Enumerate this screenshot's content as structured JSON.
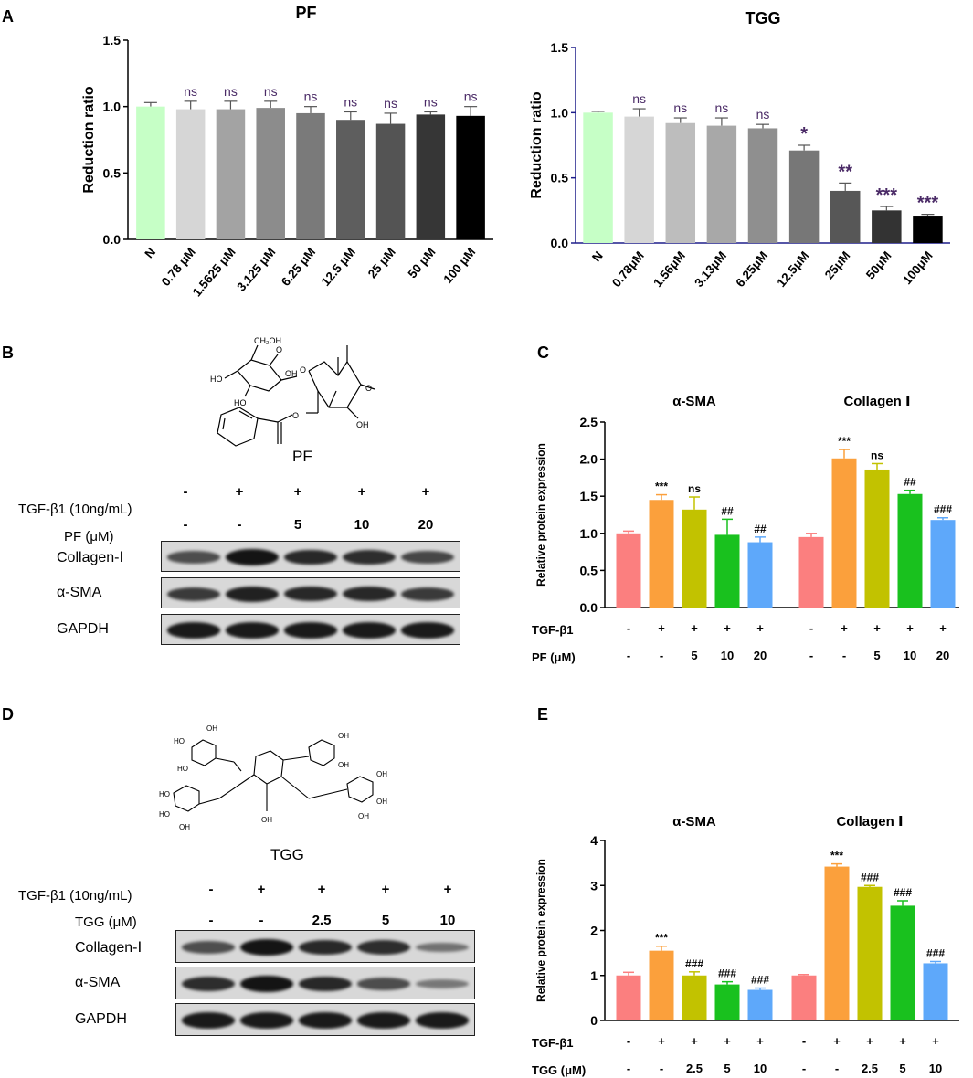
{
  "panel_labels": {
    "a": "A",
    "b": "B",
    "c": "C",
    "d": "D",
    "e": "E"
  },
  "chart_data": [
    {
      "id": "pf_viability",
      "type": "bar",
      "title": "PF",
      "ylabel": "Reduction ratio",
      "ylim": [
        0,
        1.5
      ],
      "yticks": [
        "0.0",
        "0.5",
        "1.0",
        "1.5"
      ],
      "categories": [
        "N",
        "0.78 μM",
        "1.5625 μM",
        "3.125 μM",
        "6.25 μM",
        "12.5 μM",
        "25 μM",
        "50 μM",
        "100 μM"
      ],
      "values": [
        1.0,
        0.98,
        0.98,
        0.99,
        0.95,
        0.9,
        0.87,
        0.94,
        0.93
      ],
      "errors": [
        0.03,
        0.06,
        0.06,
        0.05,
        0.05,
        0.06,
        0.08,
        0.02,
        0.07
      ],
      "annotations": [
        "",
        "ns",
        "ns",
        "ns",
        "ns",
        "ns",
        "ns",
        "ns",
        "ns"
      ],
      "colors": [
        "#c6ffc6",
        "#d6d6d6",
        "#a3a3a3",
        "#8c8c8c",
        "#7a7a7a",
        "#5e5e5e",
        "#545454",
        "#363636",
        "#000000"
      ]
    },
    {
      "id": "tgg_viability",
      "type": "bar",
      "title": "TGG",
      "ylabel": "Reduction ratio",
      "ylim": [
        0,
        1.5
      ],
      "yticks": [
        "0.0",
        "0.5",
        "1.0",
        "1.5"
      ],
      "categories": [
        "N",
        "0.78μM",
        "1.56μM",
        "3.13μM",
        "6.25μM",
        "12.5μM",
        "25μM",
        "50μM",
        "100μM"
      ],
      "values": [
        1.0,
        0.97,
        0.92,
        0.9,
        0.88,
        0.71,
        0.4,
        0.25,
        0.21
      ],
      "errors": [
        0.01,
        0.06,
        0.04,
        0.06,
        0.03,
        0.04,
        0.06,
        0.03,
        0.01
      ],
      "annotations": [
        "",
        "ns",
        "ns",
        "ns",
        "ns",
        "*",
        "**",
        "***",
        "***"
      ],
      "colors": [
        "#c6ffc6",
        "#d6d6d6",
        "#bdbdbd",
        "#a8a8a8",
        "#8f8f8f",
        "#777777",
        "#575757",
        "#333333",
        "#000000"
      ]
    },
    {
      "id": "pf_protein",
      "type": "bar",
      "ylabel": "Relative protein expression",
      "ylim": [
        0,
        2.5
      ],
      "yticks": [
        "0.0",
        "0.5",
        "1.0",
        "1.5",
        "2.0",
        "2.5"
      ],
      "groups": [
        {
          "name": "α-SMA",
          "values": [
            1.0,
            1.45,
            1.32,
            0.98,
            0.88
          ],
          "errors": [
            0.03,
            0.07,
            0.17,
            0.21,
            0.07
          ],
          "annotations": [
            "",
            "***",
            "ns",
            "##",
            "##"
          ]
        },
        {
          "name": "Collagen Ⅰ",
          "values": [
            0.95,
            2.01,
            1.86,
            1.53,
            1.18
          ],
          "errors": [
            0.05,
            0.12,
            0.08,
            0.05,
            0.03
          ],
          "annotations": [
            "",
            "***",
            "ns",
            "##",
            "###"
          ]
        }
      ],
      "colors": [
        "#fb7f7f",
        "#fba03c",
        "#c2c200",
        "#19c11e",
        "#5ea8fa"
      ],
      "row1_label": "TGF-β1",
      "row1": [
        "-",
        "+",
        "+",
        "+",
        "+"
      ],
      "row2_label": "PF (μM)",
      "row2": [
        "-",
        "-",
        "5",
        "10",
        "20"
      ]
    },
    {
      "id": "tgg_protein",
      "type": "bar",
      "ylabel": "Relative protein expression",
      "ylim": [
        0,
        4
      ],
      "yticks": [
        "0",
        "1",
        "2",
        "3",
        "4"
      ],
      "groups": [
        {
          "name": "α-SMA",
          "values": [
            1.0,
            1.55,
            1.0,
            0.8,
            0.68
          ],
          "errors": [
            0.07,
            0.1,
            0.08,
            0.06,
            0.04
          ],
          "annotations": [
            "",
            "***",
            "###",
            "###",
            "###"
          ]
        },
        {
          "name": "Collagen Ⅰ",
          "values": [
            1.0,
            3.42,
            2.97,
            2.55,
            1.27
          ],
          "errors": [
            0.02,
            0.06,
            0.03,
            0.11,
            0.04
          ],
          "annotations": [
            "",
            "***",
            "###",
            "###",
            "###"
          ]
        }
      ],
      "colors": [
        "#fb7f7f",
        "#fba03c",
        "#c2c200",
        "#19c11e",
        "#5ea8fa"
      ],
      "row1_label": "TGF-β1",
      "row1": [
        "-",
        "+",
        "+",
        "+",
        "+"
      ],
      "row2_label": "TGG (μM)",
      "row2": [
        "-",
        "-",
        "2.5",
        "5",
        "10"
      ]
    }
  ],
  "blot_b": {
    "compound_name": "PF",
    "tgf_label": "TGF-β1 (10ng/mL)",
    "dose_label": "PF (μM)",
    "tgf": [
      "-",
      "+",
      "+",
      "+",
      "+"
    ],
    "dose": [
      "-",
      "-",
      "5",
      "10",
      "20"
    ],
    "bands": [
      "Collagen-Ⅰ",
      "α-SMA",
      "GAPDH"
    ],
    "struct_labels": {
      "ch2oh": "CH₂OH",
      "o": "O",
      "ho": "HO",
      "oh": "OH"
    }
  },
  "blot_d": {
    "compound_name": "TGG",
    "tgf_label": "TGF-β1 (10ng/mL)",
    "dose_label": "TGG (μM)",
    "tgf": [
      "-",
      "+",
      "+",
      "+",
      "+"
    ],
    "dose": [
      "-",
      "-",
      "2.5",
      "5",
      "10"
    ],
    "bands": [
      "Collagen-Ⅰ",
      "α-SMA",
      "GAPDH"
    ],
    "struct_labels": {
      "oh": "OH",
      "ho": "HO"
    }
  }
}
